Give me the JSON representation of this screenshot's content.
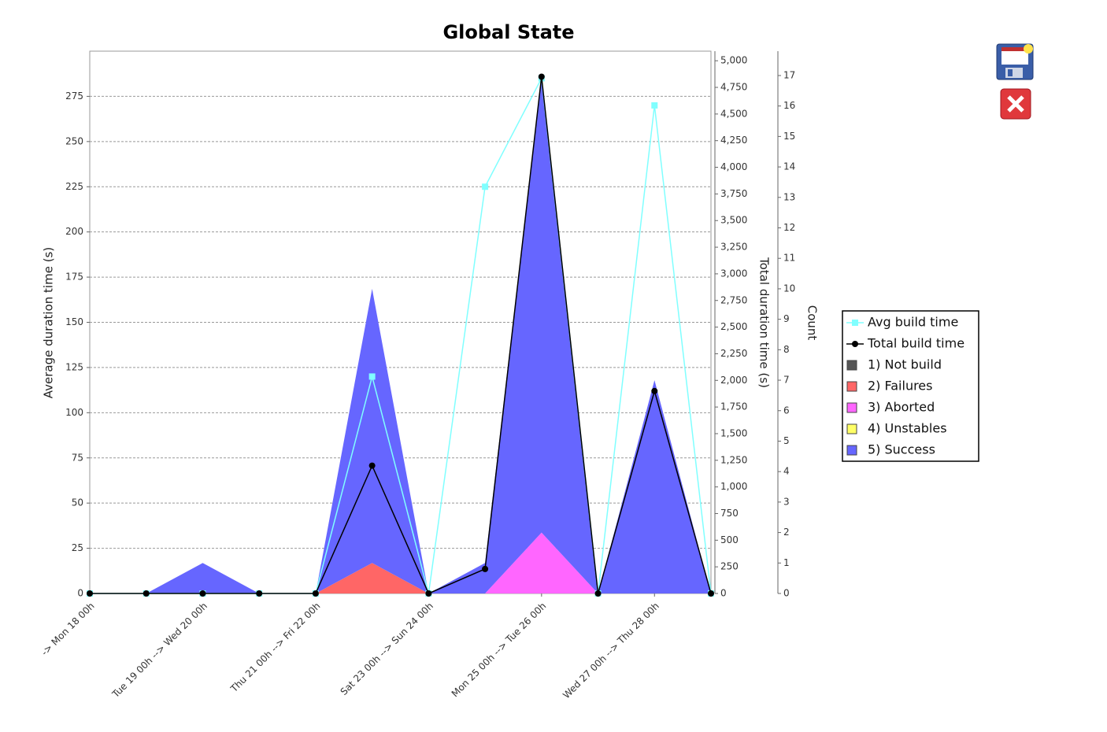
{
  "chart_data": {
    "type": "area",
    "title": "Global State",
    "categories": [
      "-> Mon 18 00h",
      null,
      "Tue 19 00h --> Wed 20 00h",
      null,
      "Thu 21 00h --> Fri 22 00h",
      null,
      "Sat 23 00h --> Sun 24 00h",
      null,
      "Mon 25 00h --> Tue 26 00h",
      null,
      "Wed 27 00h --> Thu 28 00h",
      null
    ],
    "ylabel": "Average duration time (s)",
    "ylim": [
      0,
      300
    ],
    "yticks": [
      0,
      25,
      50,
      75,
      100,
      125,
      150,
      175,
      200,
      225,
      250,
      275
    ],
    "y2label": "Total duration time (s)",
    "y2lim": [
      0,
      5090
    ],
    "y2ticks": [
      0,
      250,
      500,
      750,
      {
        "value": 1000,
        "label": "1,000"
      },
      {
        "value": 1250,
        "label": "1,250"
      },
      {
        "value": 1500,
        "label": "1,500"
      },
      {
        "value": 1750,
        "label": "1,750"
      },
      {
        "value": 2000,
        "label": "2,000"
      },
      {
        "value": 2250,
        "label": "2,250"
      },
      {
        "value": 2500,
        "label": "2,500"
      },
      {
        "value": 2750,
        "label": "2,750"
      },
      {
        "value": 3000,
        "label": "3,000"
      },
      {
        "value": 3250,
        "label": "3,250"
      },
      {
        "value": 3500,
        "label": "3,500"
      },
      {
        "value": 3750,
        "label": "3,750"
      },
      {
        "value": 4000,
        "label": "4,000"
      },
      {
        "value": 4250,
        "label": "4,250"
      },
      {
        "value": 4500,
        "label": "4,500"
      },
      {
        "value": 4750,
        "label": "4,750"
      },
      {
        "value": 5000,
        "label": "5,000"
      }
    ],
    "y3label": "Count",
    "y3lim": [
      0,
      17.8
    ],
    "y3ticks": [
      0,
      1,
      2,
      3,
      4,
      5,
      6,
      7,
      8,
      9,
      10,
      11,
      12,
      13,
      14,
      15,
      16,
      17
    ],
    "grid": true,
    "series": [
      {
        "name": "Avg build time",
        "type": "line",
        "marker": "square",
        "axis": "y",
        "color": "#80ffff",
        "values": [
          0,
          0,
          0,
          0,
          0,
          120,
          0,
          225,
          285,
          0,
          270,
          0
        ]
      },
      {
        "name": "Total build time",
        "type": "line",
        "marker": "circle",
        "axis": "y2",
        "color": "#000000",
        "values": [
          0,
          0,
          0,
          0,
          0,
          1200,
          0,
          230,
          4850,
          0,
          1900,
          0
        ]
      },
      {
        "name": "1) Not build",
        "type": "area",
        "axis": "y3",
        "color": "#555555",
        "values": [
          0,
          0,
          0,
          0,
          0,
          0,
          0,
          0,
          0,
          0,
          0,
          0
        ]
      },
      {
        "name": "2) Failures",
        "type": "area",
        "axis": "y3",
        "color": "#ff6666",
        "values": [
          0,
          0,
          0,
          0,
          0,
          1,
          0,
          0,
          0,
          0,
          0,
          0
        ]
      },
      {
        "name": "3) Aborted",
        "type": "area",
        "axis": "y3",
        "color": "#ff66ff",
        "values": [
          0,
          0,
          0,
          0,
          0,
          0,
          0,
          0,
          2,
          0,
          0,
          0
        ]
      },
      {
        "name": "4) Unstables",
        "type": "area",
        "axis": "y3",
        "color": "#ffff66",
        "values": [
          0,
          0,
          0,
          0,
          0,
          0,
          0,
          0,
          0,
          0,
          0,
          0
        ]
      },
      {
        "name": "5) Success",
        "type": "area",
        "axis": "y3",
        "color": "#6666ff",
        "values": [
          0,
          0,
          1,
          0,
          0,
          9,
          0,
          1,
          15,
          0,
          7,
          0
        ]
      }
    ]
  }
}
